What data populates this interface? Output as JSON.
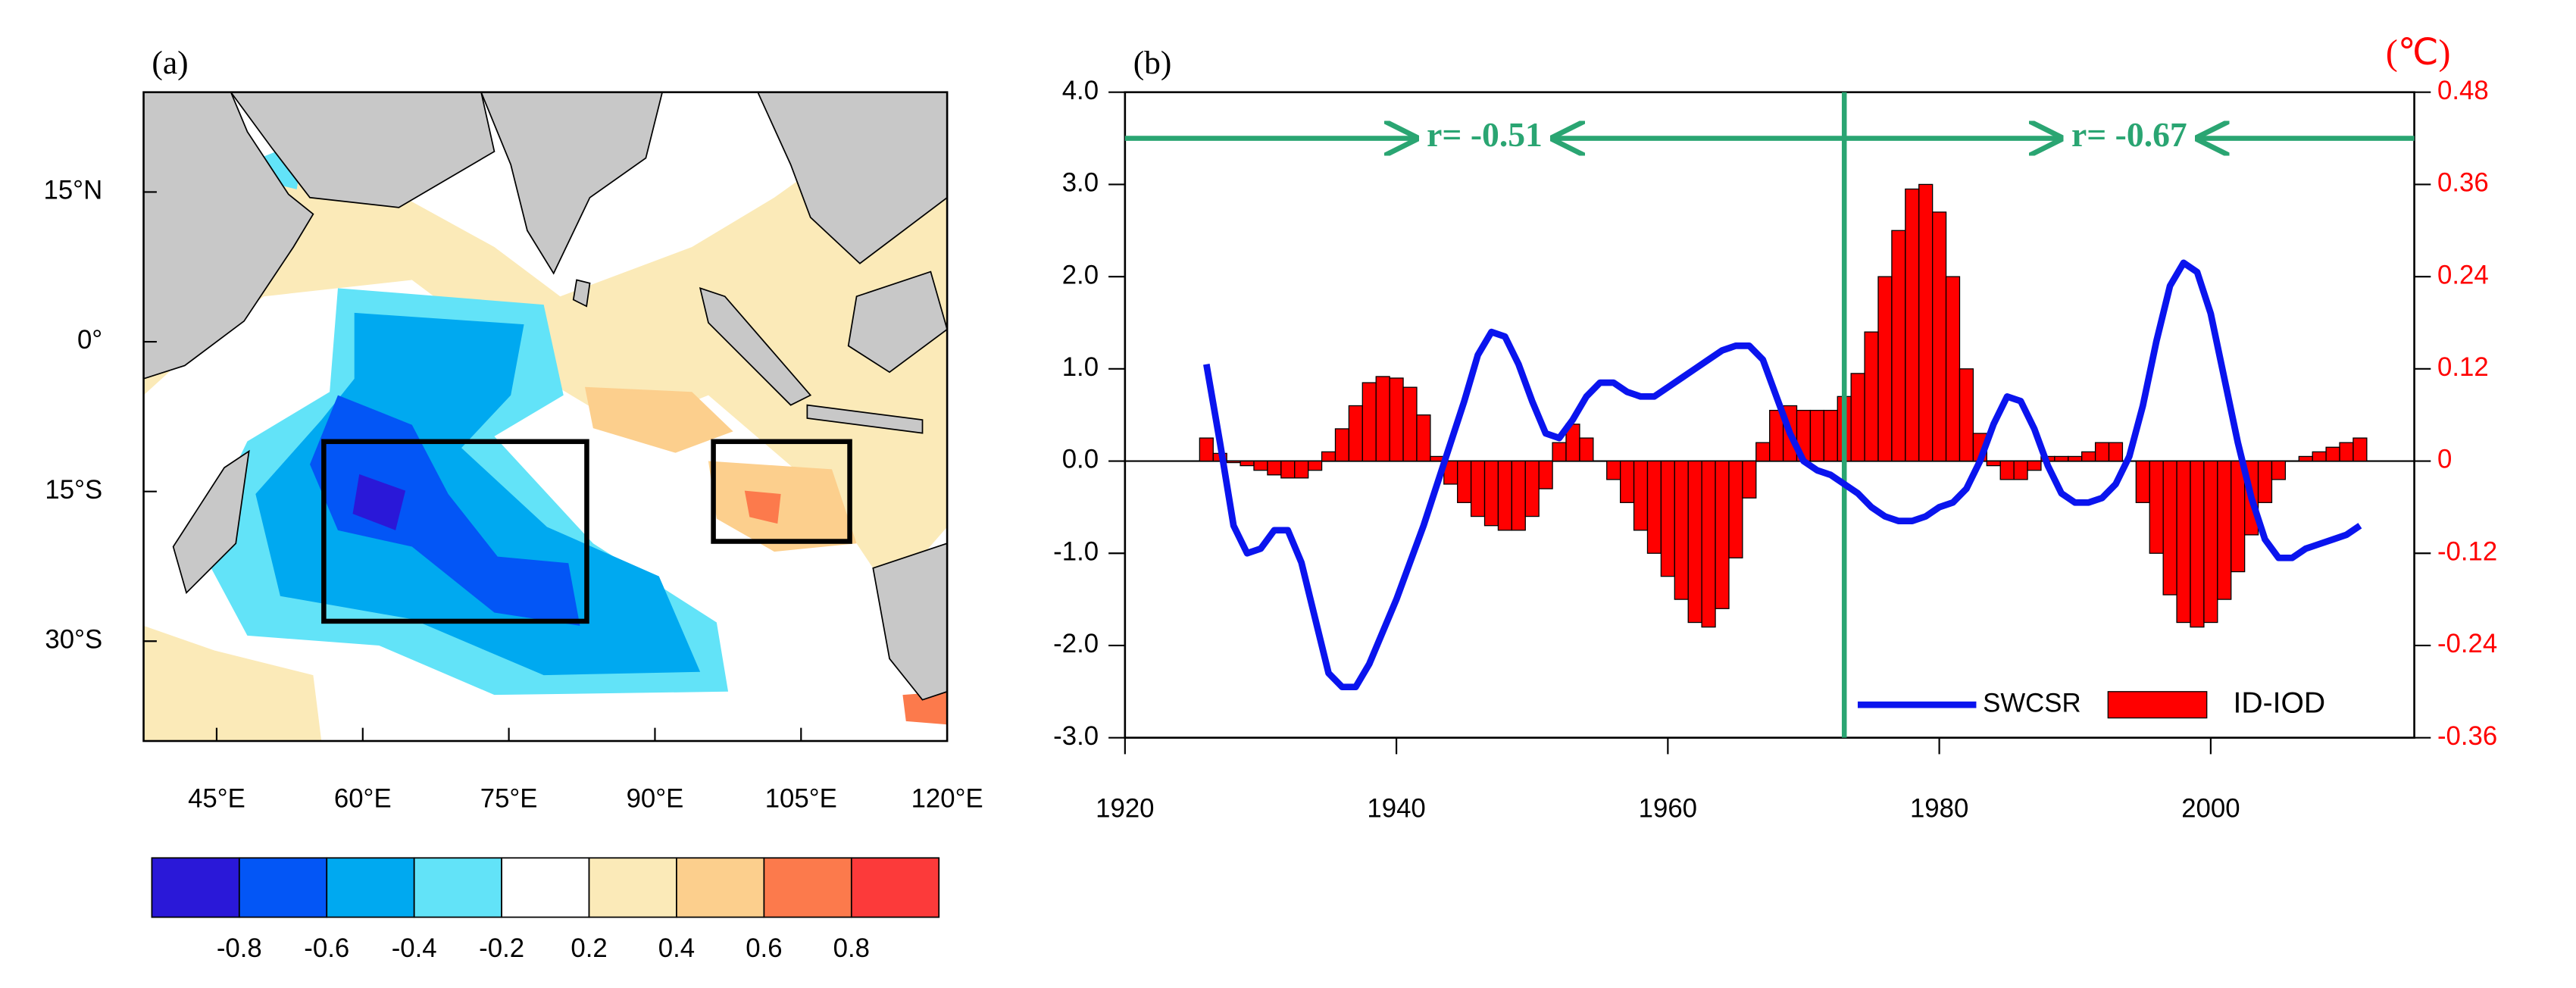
{
  "chart_data": [
    {
      "type": "map",
      "title": "(a)",
      "xlim": [
        37.5,
        120
      ],
      "ylim": [
        -40,
        25
      ],
      "xticks": [
        {
          "value": 45,
          "label": "45°E"
        },
        {
          "value": 60,
          "label": "60°E"
        },
        {
          "value": 75,
          "label": "75°E"
        },
        {
          "value": 90,
          "label": "90°E"
        },
        {
          "value": 105,
          "label": "105°E"
        },
        {
          "value": 120,
          "label": "120°E"
        }
      ],
      "yticks": [
        {
          "value": 15,
          "label": "15°N"
        },
        {
          "value": 0,
          "label": "0°"
        },
        {
          "value": -15,
          "label": "15°S"
        },
        {
          "value": -30,
          "label": "30°S"
        }
      ],
      "boxes": [
        {
          "lon": [
            56,
            83
          ],
          "lat": [
            -28,
            -10
          ]
        },
        {
          "lon": [
            96,
            110
          ],
          "lat": [
            -20,
            -10
          ]
        }
      ],
      "colorbar": {
        "levels": [
          -0.8,
          -0.6,
          -0.4,
          -0.2,
          0.2,
          0.4,
          0.6,
          0.8
        ],
        "colors": [
          "#2a18d8",
          "#0356f6",
          "#00a9f0",
          "#62e3f8",
          "#ffffff",
          "#fbeab8",
          "#fccf8d",
          "#fc7a4c",
          "#fc3a3a"
        ]
      }
    },
    {
      "type": "bar_line",
      "title": "(b)",
      "y2label": "(℃)",
      "xlim": [
        1920,
        2015
      ],
      "xticks": [
        1920,
        1940,
        1960,
        1980,
        2000
      ],
      "ylim": [
        -3,
        4
      ],
      "yticks": [
        {
          "value": 4,
          "label": "4.0"
        },
        {
          "value": 3,
          "label": "3.0"
        },
        {
          "value": 2,
          "label": "2.0"
        },
        {
          "value": 1,
          "label": "1.0"
        },
        {
          "value": 0,
          "label": "0.0"
        },
        {
          "value": -1,
          "label": "-1.0"
        },
        {
          "value": -2,
          "label": "-2.0"
        },
        {
          "value": -3,
          "label": "-3.0"
        }
      ],
      "y2lim": [
        -0.36,
        0.48
      ],
      "y2ticks": [
        0.48,
        0.36,
        0.24,
        0.12,
        0,
        -0.12,
        -0.24,
        -0.36
      ],
      "vline": 1973,
      "annotations": [
        "r= -0.51",
        "r= -0.67"
      ],
      "legend": "lower right",
      "x": [
        1926,
        1927,
        1928,
        1929,
        1930,
        1931,
        1932,
        1933,
        1934,
        1935,
        1936,
        1937,
        1938,
        1939,
        1940,
        1941,
        1942,
        1943,
        1944,
        1945,
        1946,
        1947,
        1948,
        1949,
        1950,
        1951,
        1952,
        1953,
        1954,
        1955,
        1956,
        1957,
        1958,
        1959,
        1960,
        1961,
        1962,
        1963,
        1964,
        1965,
        1966,
        1967,
        1968,
        1969,
        1970,
        1971,
        1972,
        1973,
        1974,
        1975,
        1976,
        1977,
        1978,
        1979,
        1980,
        1981,
        1982,
        1983,
        1984,
        1985,
        1986,
        1987,
        1988,
        1989,
        1990,
        1991,
        1992,
        1993,
        1994,
        1995,
        1996,
        1997,
        1998,
        1999,
        2000,
        2001,
        2002,
        2003,
        2004,
        2005,
        2006,
        2007,
        2008,
        2009,
        2010,
        2011
      ],
      "series": [
        {
          "name": "SWCSR",
          "kind": "line",
          "color": "#0a14ee",
          "values": [
            1.05,
            0.2,
            -0.7,
            -1.0,
            -0.95,
            -0.75,
            -0.75,
            -1.1,
            -1.7,
            -2.3,
            -2.45,
            -2.45,
            -2.2,
            -1.85,
            -1.5,
            -1.1,
            -0.7,
            -0.25,
            0.2,
            0.65,
            1.15,
            1.4,
            1.35,
            1.05,
            0.65,
            0.3,
            0.25,
            0.45,
            0.7,
            0.85,
            0.85,
            0.75,
            0.7,
            0.7,
            0.8,
            0.9,
            1.0,
            1.1,
            1.2,
            1.25,
            1.25,
            1.1,
            0.7,
            0.3,
            0.0,
            -0.1,
            -0.15,
            -0.25,
            -0.35,
            -0.5,
            -0.6,
            -0.65,
            -0.65,
            -0.6,
            -0.5,
            -0.45,
            -0.3,
            0.0,
            0.4,
            0.7,
            0.65,
            0.35,
            -0.05,
            -0.35,
            -0.45,
            -0.45,
            -0.4,
            -0.25,
            0.05,
            0.6,
            1.3,
            1.9,
            2.15,
            2.05,
            1.6,
            0.9,
            0.2,
            -0.4,
            -0.85,
            -1.05,
            -1.05,
            -0.95,
            -0.9,
            -0.85,
            -0.8,
            -0.7
          ]
        },
        {
          "name": "ID-IOD",
          "kind": "bar",
          "color": "#ff0000",
          "axis": "y2",
          "values": [
            0.03,
            0.01,
            -0.002,
            -0.006,
            -0.012,
            -0.018,
            -0.022,
            -0.022,
            -0.012,
            0.012,
            0.042,
            0.072,
            0.102,
            0.11,
            0.108,
            0.096,
            0.06,
            0.006,
            -0.03,
            -0.054,
            -0.072,
            -0.084,
            -0.09,
            -0.09,
            -0.072,
            -0.036,
            0.024,
            0.048,
            0.03,
            0,
            -0.024,
            -0.054,
            -0.09,
            -0.12,
            -0.15,
            -0.18,
            -0.21,
            -0.216,
            -0.192,
            -0.126,
            -0.048,
            0.024,
            0.066,
            0.072,
            0.066,
            0.066,
            0.066,
            0.084,
            0.114,
            0.168,
            0.24,
            0.3,
            0.354,
            0.36,
            0.324,
            0.24,
            0.12,
            0.036,
            -0.006,
            -0.024,
            -0.024,
            -0.012,
            0.006,
            0.006,
            0.006,
            0.012,
            0.024,
            0.024,
            0,
            -0.054,
            -0.12,
            -0.174,
            -0.21,
            -0.216,
            -0.21,
            -0.18,
            -0.144,
            -0.096,
            -0.054,
            -0.024,
            0,
            0.006,
            0.012,
            0.018,
            0.024,
            0.03
          ]
        }
      ]
    }
  ]
}
